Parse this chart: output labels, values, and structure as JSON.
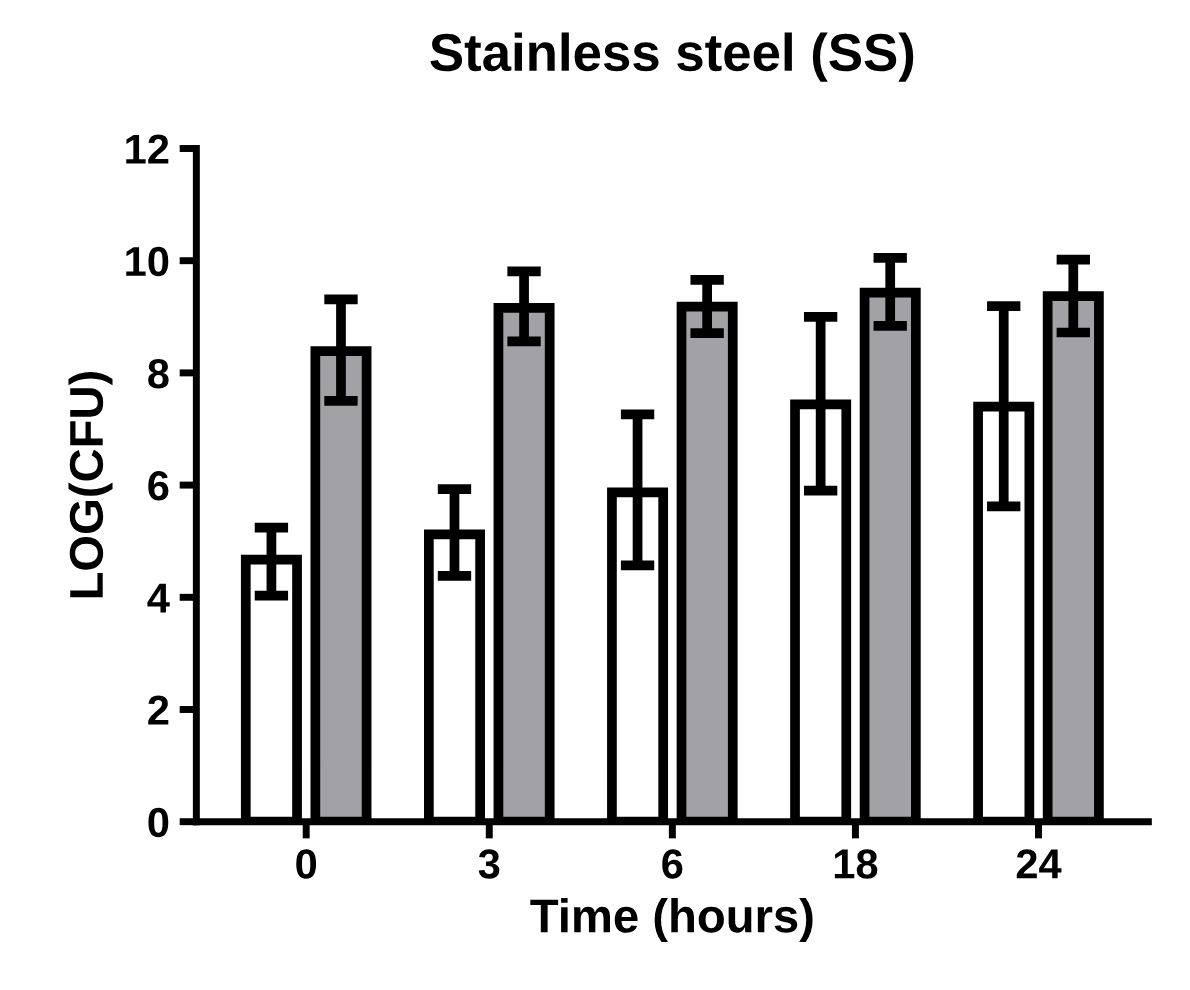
{
  "chart_data": {
    "type": "bar",
    "title": "Stainless steel (SS)",
    "xlabel": "Time (hours)",
    "ylabel": "LOG(CFU)",
    "categories": [
      "0",
      "3",
      "6",
      "18",
      "24"
    ],
    "series": [
      {
        "color": "#ffffff",
        "values": [
          4.67,
          5.12,
          5.87,
          7.44,
          7.4
        ],
        "errors": [
          [
            4.03,
            5.24
          ],
          [
            4.38,
            5.93
          ],
          [
            4.57,
            7.26
          ],
          [
            5.9,
            9.0
          ],
          [
            5.62,
            9.19
          ]
        ]
      },
      {
        "color": "#a2a1a6",
        "values": [
          8.39,
          9.16,
          9.18,
          9.43,
          9.37
        ],
        "errors": [
          [
            7.5,
            9.31
          ],
          [
            8.56,
            9.81
          ],
          [
            8.71,
            9.66
          ],
          [
            8.84,
            10.05
          ],
          [
            8.72,
            10.02
          ]
        ]
      }
    ],
    "ylim": [
      0,
      12
    ],
    "yticks": [
      0,
      2,
      4,
      6,
      8,
      10,
      12
    ],
    "grid": false,
    "legend": false
  }
}
